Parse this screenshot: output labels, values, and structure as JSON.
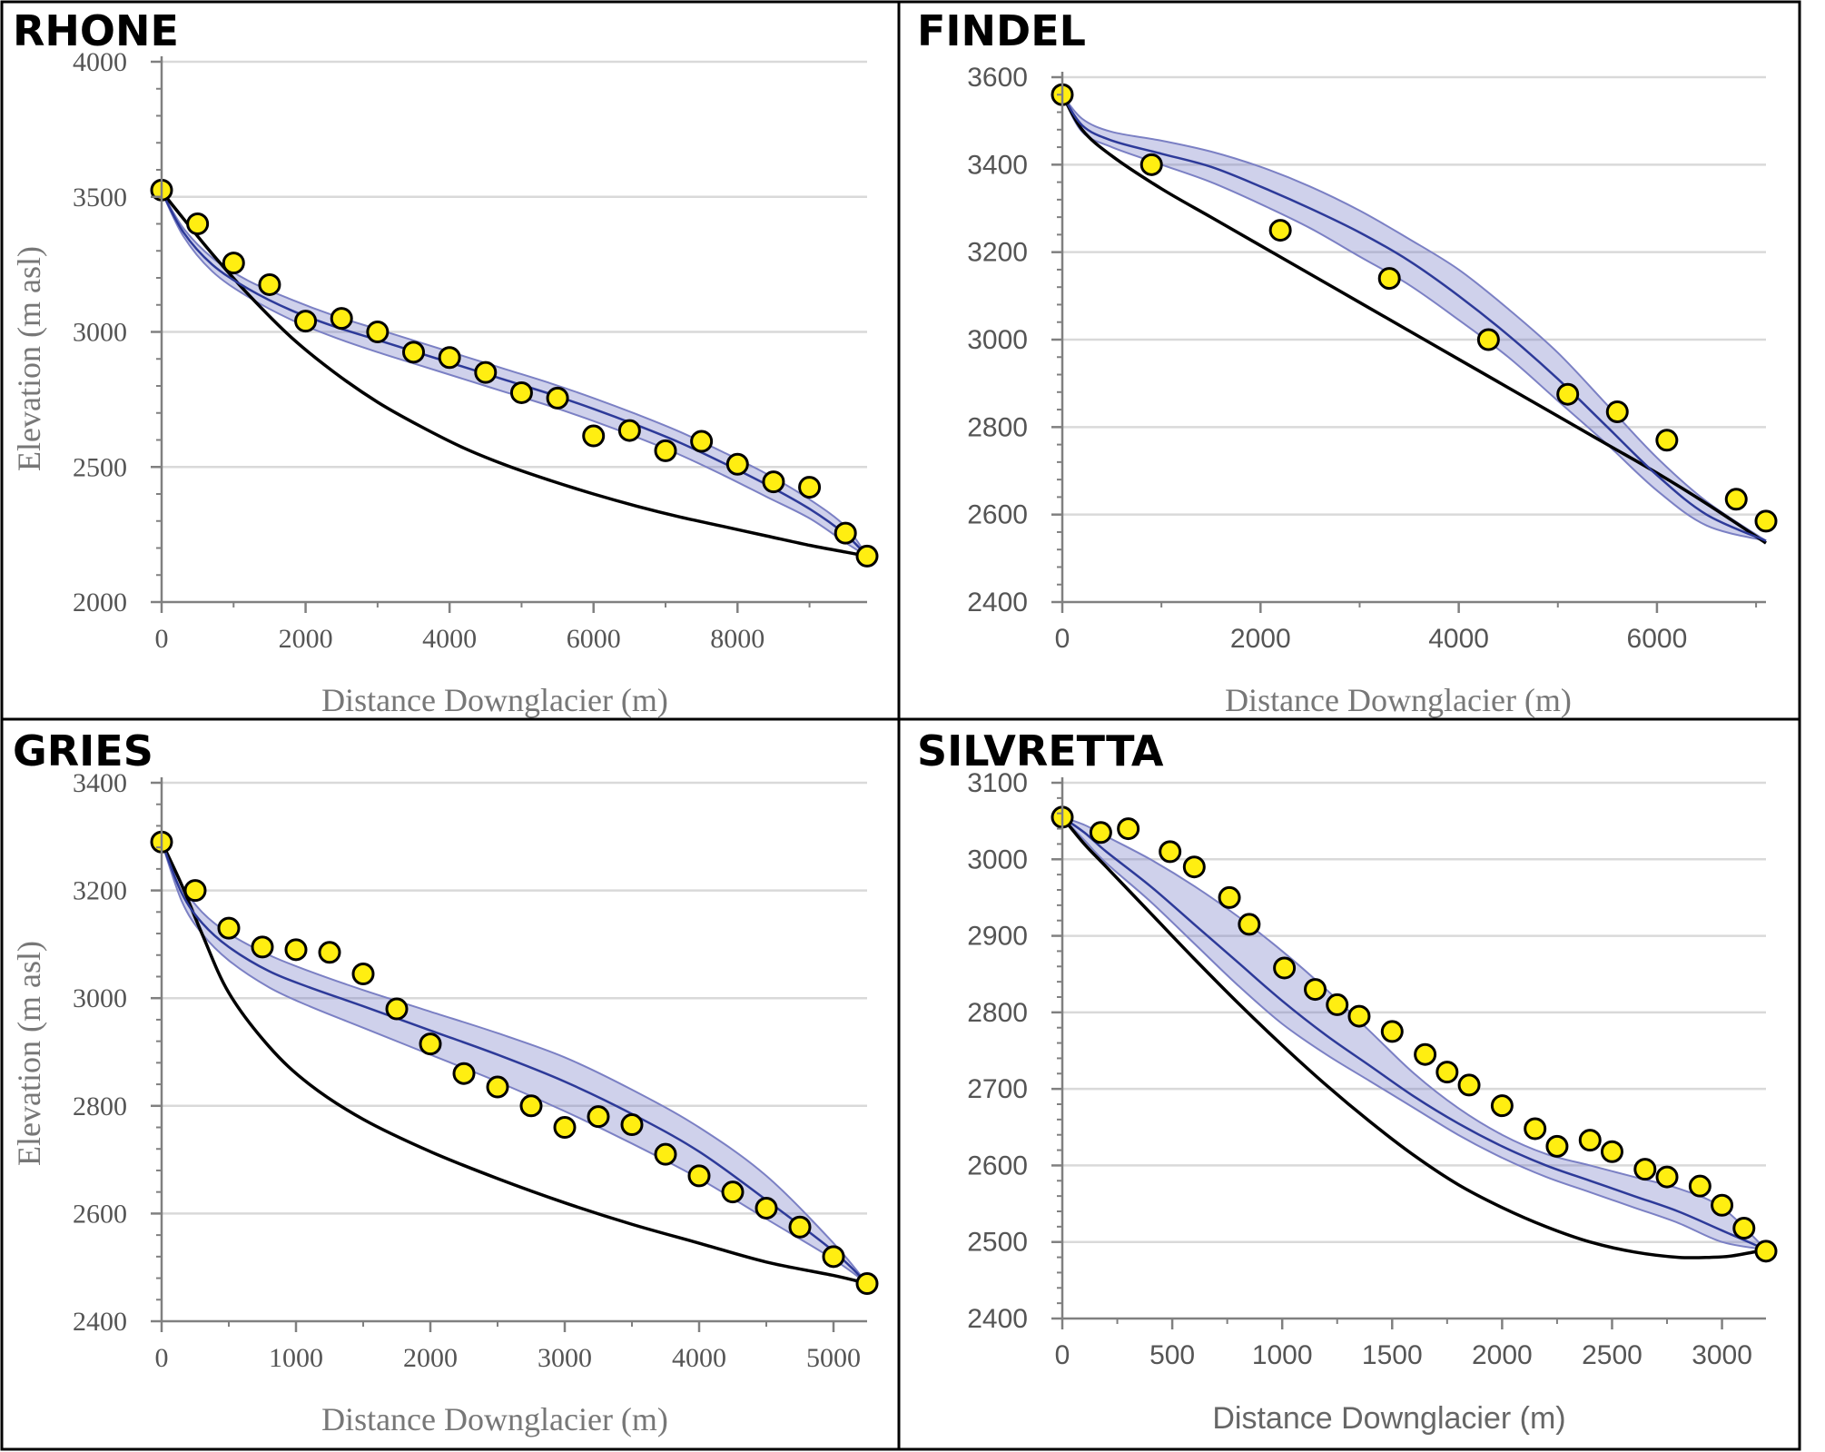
{
  "colors": {
    "band_fill": "#6a6fc2",
    "band_edge": "#7b80c4",
    "model_line": "#2d3a99",
    "baseline": "#000000",
    "point_fill": "#ffee11",
    "point_edge": "#000000",
    "grid": "#d9d9d9",
    "axis": "#808080",
    "frame": "#000000"
  },
  "chart_data": [
    {
      "type": "line",
      "title": "RHONE",
      "xlabel": "Distance Downglacier (m)",
      "ylabel": "Elevation (m asl)",
      "xlim": [
        0,
        9800
      ],
      "ylim": [
        2000,
        4000
      ],
      "x_ticks": [
        0,
        2000,
        4000,
        6000,
        8000
      ],
      "y_ticks": [
        2000,
        2500,
        3000,
        3500,
        4000
      ],
      "grid": "horizontal",
      "series": [
        {
          "role": "baseline",
          "x": [
            0,
            300,
            700,
            1200,
            1800,
            2400,
            3000,
            3600,
            4200,
            4800,
            5400,
            6000,
            6600,
            7200,
            7800,
            8400,
            9000,
            9500,
            9800
          ],
          "y": [
            3520,
            3420,
            3290,
            3140,
            2980,
            2850,
            2740,
            2650,
            2570,
            2505,
            2450,
            2400,
            2355,
            2315,
            2280,
            2245,
            2210,
            2185,
            2170
          ]
        },
        {
          "role": "model",
          "x": [
            0,
            300,
            700,
            1200,
            1800,
            2400,
            3000,
            3600,
            4200,
            4800,
            5400,
            6000,
            6600,
            7200,
            7800,
            8400,
            9000,
            9500,
            9800
          ],
          "y": [
            3520,
            3370,
            3250,
            3160,
            3080,
            3020,
            2970,
            2920,
            2870,
            2820,
            2770,
            2715,
            2655,
            2590,
            2515,
            2435,
            2345,
            2250,
            2170
          ]
        },
        {
          "role": "band-upper",
          "x": [
            0,
            300,
            700,
            1200,
            1800,
            2400,
            3000,
            3600,
            4200,
            4800,
            5400,
            6000,
            6600,
            7200,
            7800,
            8400,
            9000,
            9500,
            9800
          ],
          "y": [
            3520,
            3385,
            3275,
            3190,
            3120,
            3060,
            3010,
            2960,
            2910,
            2860,
            2810,
            2755,
            2695,
            2630,
            2555,
            2475,
            2380,
            2280,
            2170
          ]
        },
        {
          "role": "band-lower",
          "x": [
            0,
            300,
            700,
            1200,
            1800,
            2400,
            3000,
            3600,
            4200,
            4800,
            5400,
            6000,
            6600,
            7200,
            7800,
            8400,
            9000,
            9500,
            9800
          ],
          "y": [
            3520,
            3355,
            3225,
            3130,
            3045,
            2980,
            2925,
            2875,
            2825,
            2775,
            2725,
            2670,
            2610,
            2545,
            2470,
            2390,
            2310,
            2220,
            2170
          ]
        },
        {
          "role": "observed",
          "x": [
            0,
            500,
            1000,
            1500,
            2000,
            2500,
            3000,
            3500,
            4000,
            4500,
            5000,
            5500,
            6000,
            6500,
            7000,
            7500,
            8000,
            8500,
            9000,
            9500,
            9800
          ],
          "y": [
            3525,
            3400,
            3255,
            3175,
            3040,
            3050,
            3000,
            2925,
            2905,
            2850,
            2775,
            2755,
            2615,
            2635,
            2560,
            2595,
            2510,
            2445,
            2425,
            2255,
            2170
          ]
        }
      ]
    },
    {
      "type": "line",
      "title": "FINDEL",
      "xlabel": "Distance Downglacier (m)",
      "ylabel": "",
      "xlim": [
        0,
        7100
      ],
      "ylim": [
        2400,
        3600
      ],
      "x_ticks": [
        0,
        2000,
        4000,
        6000
      ],
      "y_ticks": [
        2400,
        2600,
        2800,
        3000,
        3200,
        3400,
        3600
      ],
      "grid": "horizontal",
      "series": [
        {
          "role": "baseline",
          "x": [
            0,
            200,
            500,
            1000,
            1500,
            2000,
            2500,
            3000,
            3500,
            4000,
            4500,
            5000,
            5500,
            6000,
            6500,
            7100
          ],
          "y": [
            3560,
            3480,
            3420,
            3345,
            3280,
            3215,
            3150,
            3085,
            3020,
            2955,
            2890,
            2825,
            2760,
            2695,
            2625,
            2535
          ]
        },
        {
          "role": "model",
          "x": [
            0,
            200,
            500,
            1000,
            1500,
            2000,
            2500,
            3000,
            3500,
            4000,
            4500,
            5000,
            5500,
            6000,
            6500,
            7100
          ],
          "y": [
            3560,
            3490,
            3455,
            3425,
            3395,
            3350,
            3300,
            3245,
            3180,
            3100,
            3010,
            2910,
            2800,
            2690,
            2600,
            2540
          ]
        },
        {
          "role": "band-upper",
          "x": [
            0,
            200,
            500,
            1000,
            1500,
            2000,
            2500,
            3000,
            3500,
            4000,
            4500,
            5000,
            5500,
            6000,
            6500,
            7100
          ],
          "y": [
            3560,
            3505,
            3475,
            3455,
            3430,
            3395,
            3350,
            3295,
            3230,
            3160,
            3070,
            2970,
            2850,
            2730,
            2630,
            2540
          ]
        },
        {
          "role": "band-lower",
          "x": [
            0,
            200,
            500,
            1000,
            1500,
            2000,
            2500,
            3000,
            3500,
            4000,
            4500,
            5000,
            5500,
            6000,
            6500,
            7100
          ],
          "y": [
            3560,
            3475,
            3440,
            3400,
            3360,
            3310,
            3255,
            3190,
            3125,
            3045,
            2960,
            2860,
            2760,
            2655,
            2575,
            2540
          ]
        },
        {
          "role": "observed",
          "x": [
            0,
            900,
            2200,
            3300,
            4300,
            5100,
            5600,
            6100,
            6800,
            7100
          ],
          "y": [
            3560,
            3400,
            3250,
            3140,
            3000,
            2875,
            2835,
            2770,
            2635,
            2585
          ]
        }
      ]
    },
    {
      "type": "line",
      "title": "GRIES",
      "xlabel": "Distance Downglacier (m)",
      "ylabel": "Elevation (m asl)",
      "xlim": [
        0,
        5250
      ],
      "ylim": [
        2400,
        3400
      ],
      "x_ticks": [
        0,
        1000,
        2000,
        3000,
        4000,
        5000
      ],
      "y_ticks": [
        2400,
        2600,
        2800,
        3000,
        3200,
        3400
      ],
      "grid": "horizontal",
      "series": [
        {
          "role": "baseline",
          "x": [
            0,
            150,
            300,
            500,
            800,
            1100,
            1500,
            2000,
            2500,
            3000,
            3500,
            4000,
            4500,
            5000,
            5250
          ],
          "y": [
            3290,
            3210,
            3120,
            3010,
            2910,
            2840,
            2775,
            2715,
            2665,
            2620,
            2580,
            2545,
            2510,
            2485,
            2470
          ]
        },
        {
          "role": "model",
          "x": [
            0,
            150,
            300,
            500,
            800,
            1100,
            1500,
            2000,
            2500,
            3000,
            3500,
            4000,
            4500,
            5000,
            5250
          ],
          "y": [
            3290,
            3195,
            3140,
            3095,
            3050,
            3020,
            2985,
            2940,
            2895,
            2845,
            2785,
            2715,
            2625,
            2530,
            2470
          ]
        },
        {
          "role": "band-upper",
          "x": [
            0,
            150,
            300,
            500,
            800,
            1100,
            1500,
            2000,
            2500,
            3000,
            3500,
            4000,
            4500,
            5000,
            5250
          ],
          "y": [
            3290,
            3210,
            3160,
            3120,
            3080,
            3050,
            3015,
            2975,
            2935,
            2890,
            2830,
            2760,
            2670,
            2545,
            2470
          ]
        },
        {
          "role": "band-lower",
          "x": [
            0,
            150,
            300,
            500,
            800,
            1100,
            1500,
            2000,
            2500,
            3000,
            3500,
            4000,
            4500,
            5000,
            5250
          ],
          "y": [
            3290,
            3180,
            3120,
            3070,
            3020,
            2985,
            2945,
            2895,
            2845,
            2790,
            2730,
            2665,
            2590,
            2515,
            2470
          ]
        },
        {
          "role": "observed",
          "x": [
            0,
            250,
            500,
            750,
            1000,
            1250,
            1500,
            1750,
            2000,
            2250,
            2500,
            2750,
            3000,
            3250,
            3500,
            3750,
            4000,
            4250,
            4500,
            4750,
            5000,
            5250
          ],
          "y": [
            3290,
            3200,
            3130,
            3095,
            3090,
            3085,
            3045,
            2980,
            2915,
            2860,
            2835,
            2800,
            2760,
            2780,
            2765,
            2710,
            2670,
            2640,
            2610,
            2575,
            2520,
            2470
          ]
        }
      ]
    },
    {
      "type": "line",
      "title": "SILVRETTA",
      "xlabel": "Distance Downglacier (m)",
      "ylabel": "",
      "xlim": [
        0,
        3200
      ],
      "ylim": [
        2400,
        3100
      ],
      "x_ticks": [
        0,
        500,
        1000,
        1500,
        2000,
        2500,
        3000
      ],
      "y_ticks": [
        2400,
        2500,
        2600,
        2700,
        2800,
        2900,
        3000,
        3100
      ],
      "grid": "horizontal",
      "series": [
        {
          "role": "baseline",
          "x": [
            0,
            100,
            200,
            400,
            600,
            800,
            1000,
            1200,
            1400,
            1600,
            1800,
            2000,
            2200,
            2400,
            2600,
            2800,
            2950,
            3050,
            3200
          ],
          "y": [
            3055,
            3020,
            2990,
            2930,
            2870,
            2812,
            2757,
            2705,
            2657,
            2613,
            2575,
            2545,
            2520,
            2500,
            2487,
            2480,
            2480,
            2482,
            2490
          ]
        },
        {
          "role": "model",
          "x": [
            0,
            100,
            200,
            400,
            600,
            800,
            1000,
            1200,
            1400,
            1600,
            1800,
            2000,
            2200,
            2400,
            2600,
            2800,
            3000,
            3200
          ],
          "y": [
            3055,
            3035,
            3010,
            2965,
            2915,
            2865,
            2815,
            2770,
            2730,
            2690,
            2655,
            2625,
            2600,
            2580,
            2560,
            2540,
            2515,
            2490
          ]
        },
        {
          "role": "band-upper",
          "x": [
            0,
            100,
            200,
            400,
            600,
            800,
            1000,
            1200,
            1400,
            1600,
            1800,
            2000,
            2200,
            2400,
            2600,
            2800,
            3000,
            3200
          ],
          "y": [
            3055,
            3045,
            3030,
            3000,
            2965,
            2925,
            2880,
            2830,
            2775,
            2720,
            2675,
            2640,
            2615,
            2600,
            2585,
            2570,
            2545,
            2490
          ]
        },
        {
          "role": "band-lower",
          "x": [
            0,
            100,
            200,
            400,
            600,
            800,
            1000,
            1200,
            1400,
            1600,
            1800,
            2000,
            2200,
            2400,
            2600,
            2800,
            3000,
            3200
          ],
          "y": [
            3055,
            3025,
            2995,
            2945,
            2890,
            2835,
            2785,
            2745,
            2710,
            2675,
            2640,
            2610,
            2585,
            2565,
            2545,
            2525,
            2500,
            2490
          ]
        },
        {
          "role": "observed",
          "x": [
            0,
            175,
            300,
            490,
            600,
            760,
            850,
            1010,
            1150,
            1250,
            1350,
            1500,
            1650,
            1750,
            1850,
            2000,
            2150,
            2250,
            2400,
            2500,
            2650,
            2750,
            2900,
            3000,
            3100,
            3200
          ],
          "y": [
            3055,
            3035,
            3040,
            3010,
            2990,
            2950,
            2915,
            2858,
            2830,
            2810,
            2795,
            2775,
            2745,
            2722,
            2705,
            2678,
            2648,
            2625,
            2633,
            2618,
            2595,
            2585,
            2573,
            2548,
            2518,
            2488
          ]
        }
      ]
    }
  ]
}
